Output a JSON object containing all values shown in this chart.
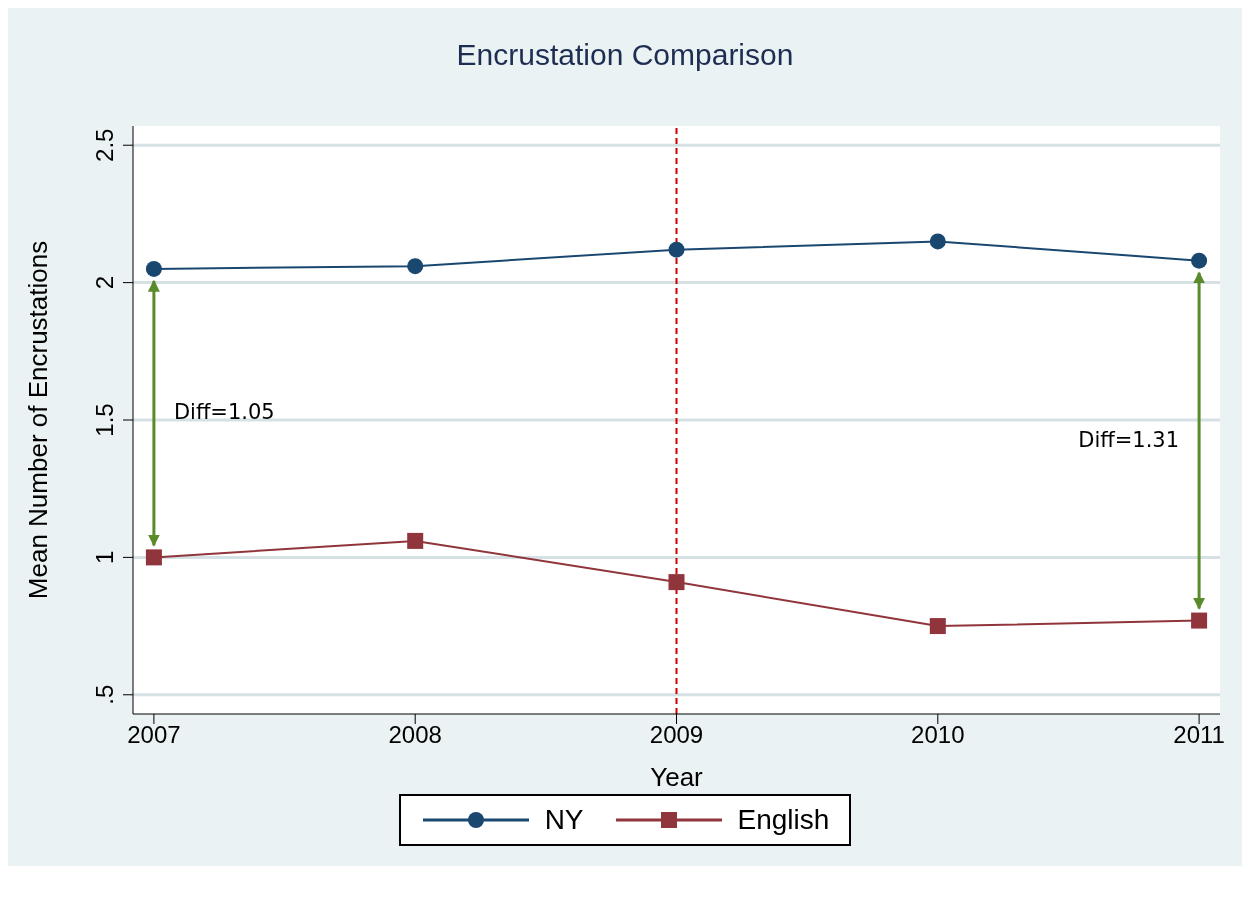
{
  "chart_data": {
    "type": "line",
    "title": "Encrustation Comparison",
    "xlabel": "Year",
    "ylabel": "Mean Number of Encrustations",
    "x": [
      2007,
      2008,
      2009,
      2010,
      2011
    ],
    "series": [
      {
        "name": "NY",
        "color": "#1a476f",
        "marker": "circle",
        "values": [
          2.05,
          2.06,
          2.12,
          2.15,
          2.08
        ]
      },
      {
        "name": "English",
        "color": "#90353b",
        "marker": "square",
        "values": [
          1.0,
          1.06,
          0.91,
          0.75,
          0.77
        ]
      }
    ],
    "xlim": [
      2006.92,
      2011.08
    ],
    "xticks": [
      2007,
      2008,
      2009,
      2010,
      2011
    ],
    "ylim": [
      0.43,
      2.57
    ],
    "yticks": [
      {
        "value": 0.5,
        "label": ".5"
      },
      1,
      1.5,
      2,
      2.5
    ],
    "grid": "y",
    "legend": "bottom",
    "ref_lines": [
      {
        "axis": "x",
        "value": 2009,
        "color": "#cc0000",
        "line_style": "dashed"
      }
    ],
    "annotations": [
      "Diff=1.05",
      "Diff=1.31"
    ]
  }
}
